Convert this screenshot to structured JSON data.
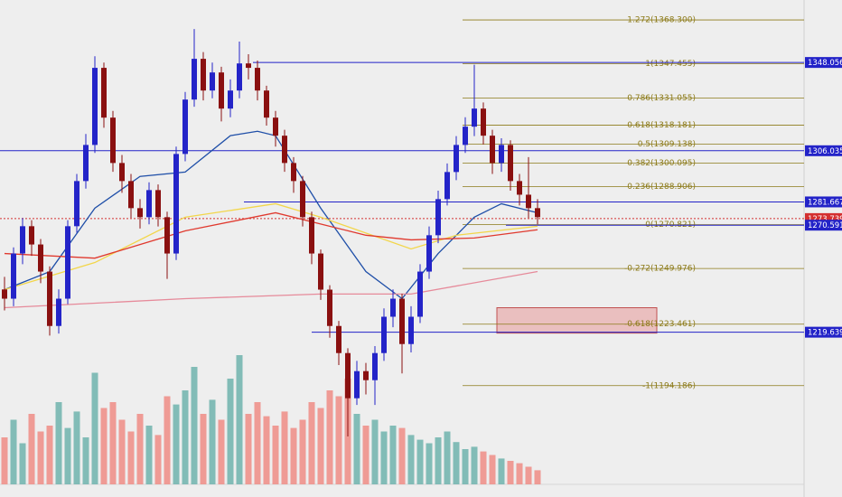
{
  "chart_data": {
    "type": "candlestick",
    "ylim": [
      1147.2,
      1377.8
    ],
    "up_color": "#2424c8",
    "down_color": "#8a1010",
    "open": [
      1240.0,
      1235.6,
      1257.1,
      1270.1,
      1261.4,
      1248.5,
      1222.6,
      1235.6,
      1270.1,
      1291.6,
      1308.8,
      1345.5,
      1321.8,
      1300.2,
      1291.6,
      1278.7,
      1274.4,
      1287.3,
      1274.4,
      1257.1,
      1304.5,
      1330.4,
      1349.8,
      1334.7,
      1343.3,
      1326.1,
      1334.7,
      1347.6,
      1345.5,
      1334.7,
      1321.8,
      1313.2,
      1300.2,
      1291.6,
      1274.4,
      1257.1,
      1239.9,
      1222.6,
      1209.7,
      1188.2,
      1201.1,
      1196.8,
      1209.7,
      1227.0,
      1235.6,
      1214.0,
      1227.0,
      1248.5,
      1265.8,
      1283.0,
      1295.9,
      1308.8,
      1317.5,
      1326.1,
      1313.2,
      1300.2,
      1308.8,
      1291.6,
      1285.1,
      1278.7
    ],
    "high": [
      1246.0,
      1260.0,
      1274.0,
      1273.0,
      1264.0,
      1251.0,
      1240.0,
      1273.0,
      1295.0,
      1314.0,
      1351.0,
      1348.0,
      1325.0,
      1304.0,
      1295.0,
      1283.0,
      1291.0,
      1290.0,
      1277.0,
      1308.0,
      1334.0,
      1364.0,
      1353.0,
      1348.0,
      1346.0,
      1340.0,
      1358.0,
      1352.0,
      1349.0,
      1337.0,
      1325.0,
      1316.0,
      1303.0,
      1294.0,
      1277.0,
      1259.0,
      1242.0,
      1225.0,
      1212.0,
      1206.0,
      1205.0,
      1213.0,
      1231.0,
      1240.0,
      1238.0,
      1232.0,
      1252.0,
      1270.0,
      1287.0,
      1300.0,
      1313.0,
      1322.0,
      1347.0,
      1329.0,
      1316.0,
      1312.0,
      1311.0,
      1295.0,
      1303.0,
      1283.0
    ],
    "low": [
      1230.0,
      1232.0,
      1252.0,
      1256.0,
      1243.0,
      1218.0,
      1219.0,
      1233.0,
      1267.0,
      1288.0,
      1305.0,
      1317.0,
      1296.0,
      1286.0,
      1274.0,
      1269.0,
      1271.0,
      1270.0,
      1245.0,
      1254.0,
      1301.0,
      1327.0,
      1330.0,
      1331.0,
      1320.0,
      1322.0,
      1331.0,
      1340.0,
      1330.0,
      1318.0,
      1308.0,
      1296.0,
      1286.0,
      1270.0,
      1252.0,
      1235.0,
      1217.0,
      1204.0,
      1170.0,
      1185.0,
      1190.0,
      1185.0,
      1206.0,
      1222.0,
      1200.0,
      1210.0,
      1224.0,
      1245.0,
      1262.0,
      1280.0,
      1292.0,
      1305.0,
      1313.0,
      1309.0,
      1295.0,
      1296.0,
      1287.0,
      1280.0,
      1274.0,
      1271.0
    ],
    "close": [
      1235.6,
      1257.1,
      1270.1,
      1261.4,
      1248.5,
      1222.6,
      1235.6,
      1270.1,
      1291.6,
      1308.8,
      1345.5,
      1321.8,
      1300.2,
      1291.6,
      1278.7,
      1274.4,
      1287.3,
      1274.4,
      1257.1,
      1304.5,
      1330.4,
      1349.8,
      1334.7,
      1343.3,
      1326.1,
      1334.7,
      1347.6,
      1345.5,
      1334.7,
      1321.8,
      1313.2,
      1300.2,
      1291.6,
      1274.4,
      1257.1,
      1239.9,
      1222.6,
      1209.7,
      1188.2,
      1201.1,
      1196.8,
      1209.7,
      1227.0,
      1235.6,
      1214.0,
      1227.0,
      1248.5,
      1265.8,
      1283.0,
      1295.9,
      1308.8,
      1317.5,
      1326.1,
      1313.2,
      1300.2,
      1308.8,
      1291.6,
      1285.1,
      1278.7,
      1274.4
    ],
    "volume": [
      40,
      55,
      35,
      60,
      45,
      50,
      70,
      48,
      62,
      40,
      95,
      65,
      70,
      55,
      45,
      60,
      50,
      42,
      75,
      68,
      80,
      100,
      60,
      72,
      55,
      90,
      110,
      60,
      70,
      58,
      50,
      62,
      48,
      55,
      70,
      65,
      80,
      75,
      90,
      60,
      50,
      55,
      45,
      50,
      48,
      42,
      38,
      35,
      40,
      45,
      36,
      30,
      32,
      28,
      25,
      22,
      20,
      18,
      15,
      12
    ],
    "up_volume_color": "#6fb3ad",
    "down_volume_color": "#ef8c85",
    "moving_averages": [
      {
        "color": "#1f4fa8",
        "x": [
          0,
          5,
          10,
          15,
          20,
          25,
          28,
          30,
          35,
          40,
          44,
          48,
          52,
          55,
          59
        ],
        "values": [
          1239.9,
          1248.5,
          1278.7,
          1293.8,
          1295.9,
          1313.2,
          1315.3,
          1313.2,
          1278.7,
          1248.5,
          1235.6,
          1257.1,
          1274.4,
          1280.8,
          1276.5
        ]
      },
      {
        "color": "#f2d64a",
        "x": [
          0,
          10,
          20,
          30,
          35,
          45,
          50,
          59
        ],
        "values": [
          1239.9,
          1252.8,
          1274.4,
          1280.8,
          1274.4,
          1259.3,
          1265.8,
          1270.1
        ]
      },
      {
        "color": "#e0392e",
        "x": [
          0,
          10,
          20,
          30,
          40,
          45,
          52,
          59
        ],
        "values": [
          1257.1,
          1254.9,
          1267.9,
          1276.5,
          1265.8,
          1263.6,
          1264.5,
          1268.4
        ]
      },
      {
        "color": "#e68a9a",
        "x": [
          0,
          20,
          35,
          45,
          59
        ],
        "values": [
          1231.3,
          1235.6,
          1237.8,
          1237.8,
          1248.5
        ]
      }
    ],
    "fib_levels": [
      {
        "value": 1368.3,
        "label": "1.272(1368.300)"
      },
      {
        "value": 1347.455,
        "label": "1(1347.455)"
      },
      {
        "value": 1331.055,
        "label": "0.786(1331.055)"
      },
      {
        "value": 1318.181,
        "label": "0.618(1318.181)"
      },
      {
        "value": 1309.138,
        "label": "0.5(1309.138)"
      },
      {
        "value": 1300.095,
        "label": "0.382(1300.095)"
      },
      {
        "value": 1288.906,
        "label": "0.236(1288.906)"
      },
      {
        "value": 1270.821,
        "label": "0(1270.821)"
      },
      {
        "value": 1249.976,
        "label": "-0.272(1249.976)"
      },
      {
        "value": 1223.461,
        "label": "-0.618(1223.461)"
      },
      {
        "value": 1194.186,
        "label": "-1(1194.186)"
      }
    ],
    "fib_color": "#8c7a18",
    "zone": [
      1219.2,
      1231.3
    ],
    "zone_color": "#e8a0a0",
    "price_lines": [
      {
        "value": 1348.056,
        "color": "#2323c8"
      },
      {
        "value": 1306.035,
        "color": "#2323c8"
      },
      {
        "value": 1281.667,
        "color": "#2323c8"
      },
      {
        "value": 1273.739,
        "color": "#d43030"
      },
      {
        "value": 1270.591,
        "color": "#2323c8"
      },
      {
        "value": 1219.639,
        "color": "#2323c8"
      }
    ]
  }
}
